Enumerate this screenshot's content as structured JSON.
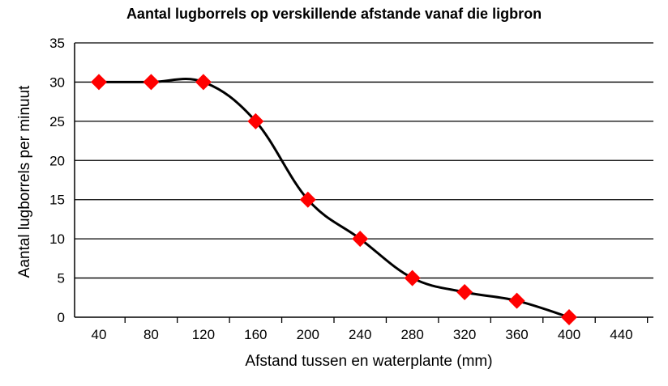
{
  "chart_data": {
    "type": "line",
    "title": "Aantal lugborrels op verskillende afstande vanaf die ligbron",
    "xlabel": "Afstand tussen en waterplante (mm)",
    "ylabel": "Aantal lugborrels per minuut",
    "x": [
      40,
      80,
      120,
      160,
      200,
      240,
      280,
      320,
      360,
      400
    ],
    "x_ticks": [
      40,
      80,
      120,
      160,
      200,
      240,
      280,
      320,
      360,
      400,
      440
    ],
    "ylim": [
      0,
      35
    ],
    "y_ticks": [
      0,
      5,
      10,
      15,
      20,
      25,
      30,
      35
    ],
    "grid": "horizontal",
    "series": [
      {
        "values": [
          30,
          30,
          30,
          25,
          15,
          10,
          5,
          3.2,
          2.1,
          0
        ],
        "line_color": "#000000",
        "marker_color": "#ff0000",
        "marker": "diamond"
      }
    ]
  }
}
